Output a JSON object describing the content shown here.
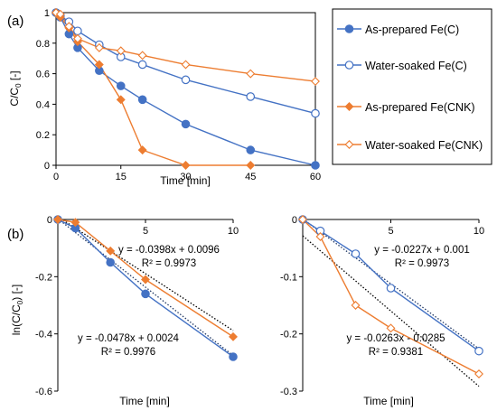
{
  "chart_data": [
    {
      "type": "line",
      "panel_label": "(a)",
      "xlabel": "Time [min]",
      "ylabel": "C/C0 [-]",
      "ylabel_main": "C/C",
      "ylabel_sub": "0",
      "ylabel_unit": " [-]",
      "xlim": [
        0,
        60
      ],
      "ylim": [
        0,
        1
      ],
      "xticks": [
        0,
        15,
        30,
        45,
        60
      ],
      "yticks": [
        0,
        0.2,
        0.4,
        0.6,
        0.8,
        1
      ],
      "ytick_labels": [
        "0",
        "0.2",
        "0.4",
        "0.6",
        "0.8",
        "1"
      ],
      "grid": false,
      "legend": "right",
      "series": [
        {
          "name": "As-prepared Fe(C)",
          "color": "#4472C4",
          "marker": "circle",
          "fill": "#4472C4",
          "x": [
            0,
            1,
            3,
            5,
            10,
            15,
            20,
            30,
            45,
            60
          ],
          "y": [
            1.0,
            0.97,
            0.86,
            0.77,
            0.62,
            0.52,
            0.43,
            0.27,
            0.1,
            0.0
          ]
        },
        {
          "name": "Water-soaked Fe(C)",
          "color": "#4472C4",
          "marker": "circle",
          "fill": "#ffffff",
          "x": [
            0,
            1,
            3,
            5,
            10,
            15,
            20,
            30,
            45,
            60
          ],
          "y": [
            1.0,
            0.98,
            0.94,
            0.88,
            0.79,
            0.71,
            0.66,
            0.56,
            0.45,
            0.34
          ]
        },
        {
          "name": "As-prepared Fe(CNK)",
          "color": "#ED7D31",
          "marker": "diamond",
          "fill": "#ED7D31",
          "x": [
            0,
            1,
            3,
            5,
            10,
            15,
            20,
            30,
            45
          ],
          "y": [
            1.0,
            0.97,
            0.9,
            0.81,
            0.66,
            0.43,
            0.1,
            0.0,
            0.0
          ]
        },
        {
          "name": "Water-soaked Fe(CNK)",
          "color": "#ED7D31",
          "marker": "diamond",
          "fill": "#ffffff",
          "x": [
            0,
            1,
            3,
            5,
            10,
            15,
            20,
            30,
            45,
            60
          ],
          "y": [
            1.0,
            0.99,
            0.91,
            0.83,
            0.77,
            0.75,
            0.72,
            0.66,
            0.6,
            0.55
          ]
        }
      ]
    },
    {
      "type": "scatter",
      "panel_label": "(b)",
      "xlabel": "Time [min]",
      "ylabel": "ln(C/C0) [-]",
      "ylabel_main": "ln(C/C",
      "ylabel_sub": "0",
      "ylabel_unit": ") [-]",
      "xlim": [
        0,
        10
      ],
      "ylim": [
        -0.6,
        0
      ],
      "xticks": [
        0,
        5,
        10
      ],
      "yticks": [
        -0.6,
        -0.4,
        -0.2,
        0
      ],
      "ytick_labels": [
        "-0.6",
        "-0.4",
        "-0.2",
        "0"
      ],
      "series": [
        {
          "color": "#4472C4",
          "marker": "circle",
          "fill": "#4472C4",
          "x": [
            0,
            1,
            3,
            5,
            10
          ],
          "y": [
            0,
            -0.03,
            -0.15,
            -0.26,
            -0.48
          ]
        },
        {
          "color": "#ED7D31",
          "marker": "diamond",
          "fill": "#ED7D31",
          "x": [
            0,
            1,
            3,
            5,
            10
          ],
          "y": [
            0,
            -0.01,
            -0.11,
            -0.21,
            -0.41
          ]
        }
      ],
      "trendlines": [
        {
          "slope": -0.0398,
          "intercept": 0.0096,
          "color": "#000000"
        },
        {
          "slope": -0.0478,
          "intercept": 0.0024,
          "color": "#203864"
        }
      ],
      "annotations": [
        {
          "equation": "y = -0.0398x + 0.0096",
          "r2": "R² = 0.9973"
        },
        {
          "equation": "y = -0.0478x + 0.0024",
          "r2": "R² = 0.9976"
        }
      ]
    },
    {
      "type": "scatter",
      "xlabel": "Time [min]",
      "xlim": [
        0,
        10
      ],
      "ylim": [
        -0.3,
        0
      ],
      "xticks": [
        0,
        5,
        10
      ],
      "yticks": [
        -0.3,
        -0.2,
        -0.1,
        0
      ],
      "ytick_labels": [
        "-0.3",
        "-0.2",
        "-0.1",
        "0"
      ],
      "series": [
        {
          "color": "#4472C4",
          "marker": "circle",
          "fill": "#ffffff",
          "x": [
            0,
            1,
            3,
            5,
            10
          ],
          "y": [
            0,
            -0.02,
            -0.06,
            -0.12,
            -0.23
          ]
        },
        {
          "color": "#ED7D31",
          "marker": "diamond",
          "fill": "#ffffff",
          "x": [
            0,
            1,
            3,
            5,
            10
          ],
          "y": [
            0,
            -0.03,
            -0.15,
            -0.19,
            -0.27
          ]
        }
      ],
      "trendlines": [
        {
          "slope": -0.0227,
          "intercept": 0.001,
          "color": "#203864"
        },
        {
          "slope": -0.0263,
          "intercept": -0.0285,
          "color": "#000000"
        }
      ],
      "annotations": [
        {
          "equation": "y = -0.0227x + 0.001",
          "r2": "R² = 0.9973"
        },
        {
          "equation": "y = -0.0263x - 0.0285",
          "r2": "R² = 0.9381"
        }
      ]
    }
  ]
}
